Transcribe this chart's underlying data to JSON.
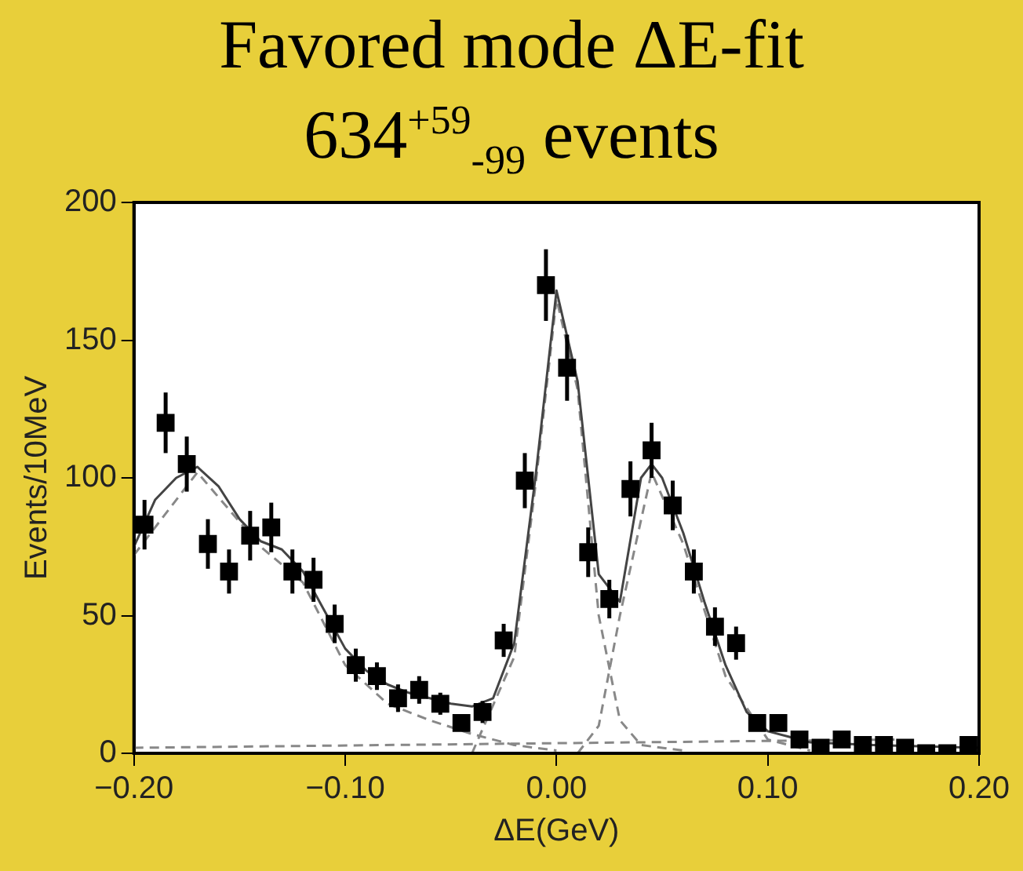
{
  "chart_data": {
    "type": "scatter",
    "title": "Favored mode ΔE-fit",
    "subtitle": "634$^{+59}$$_{-99}$ events",
    "xlabel": "ΔE(GeV)",
    "ylabel": "Events/10MeV",
    "xlim": [
      -0.2,
      0.2
    ],
    "xticks": [
      {
        "value": -0.2,
        "label": "−0.20"
      },
      {
        "value": -0.1,
        "label": "−0.10"
      },
      {
        "value": 0,
        "label": "0.00"
      },
      {
        "value": 0.1,
        "label": "0.10"
      },
      {
        "value": 0.2,
        "label": "0.20"
      }
    ],
    "ylim": [
      0,
      200
    ],
    "yticks": [
      0,
      50,
      100,
      150,
      200
    ],
    "grid": false,
    "legend": false,
    "marker": "square",
    "series": [
      {
        "type": "scatter",
        "color": "#000000",
        "x": [
          -0.195,
          -0.185,
          -0.175,
          -0.165,
          -0.155,
          -0.145,
          -0.135,
          -0.125,
          -0.115,
          -0.105,
          -0.095,
          -0.085,
          -0.075,
          -0.065,
          -0.055,
          -0.045,
          -0.035,
          -0.025,
          -0.015,
          -0.005,
          0.005,
          0.015,
          0.025,
          0.035,
          0.045,
          0.055,
          0.065,
          0.075,
          0.085,
          0.095,
          0.105,
          0.115,
          0.125,
          0.135,
          0.145,
          0.155,
          0.165,
          0.175,
          0.185,
          0.195
        ],
        "values": [
          83,
          120,
          105,
          76,
          66,
          79,
          82,
          66,
          63,
          47,
          32,
          28,
          20,
          23,
          18,
          11,
          15,
          41,
          99,
          170,
          140,
          73,
          56,
          96,
          110,
          90,
          66,
          46,
          40,
          11,
          11,
          5,
          2,
          5,
          3,
          3,
          2,
          0,
          0,
          3
        ],
        "errors": [
          9,
          11,
          10,
          9,
          8,
          9,
          9,
          8,
          8,
          7,
          6,
          5,
          5,
          5,
          4,
          3,
          4,
          6,
          10,
          13,
          12,
          9,
          7,
          10,
          10,
          9,
          8,
          7,
          6,
          3,
          3,
          2,
          1,
          2,
          2,
          2,
          1,
          null,
          null,
          2
        ]
      },
      {
        "type": "line",
        "color": "#444444",
        "line_style": "solid",
        "marker": "none",
        "x": [
          -0.2,
          -0.19,
          -0.18,
          -0.17,
          -0.16,
          -0.15,
          -0.14,
          -0.13,
          -0.12,
          -0.11,
          -0.1,
          -0.09,
          -0.08,
          -0.07,
          -0.06,
          -0.05,
          -0.04,
          -0.03,
          -0.02,
          -0.01,
          0,
          0.01,
          0.02,
          0.03,
          0.04,
          0.045,
          0.05,
          0.06,
          0.07,
          0.08,
          0.09,
          0.1,
          0.12,
          0.15,
          0.2
        ],
        "values": [
          75,
          92,
          100,
          104,
          97,
          85,
          77,
          74,
          66,
          52,
          38,
          30,
          25,
          22,
          20,
          18,
          17,
          20,
          40,
          100,
          168,
          135,
          65,
          55,
          100,
          105,
          100,
          80,
          55,
          32,
          15,
          8,
          4,
          3,
          2
        ]
      },
      {
        "type": "line",
        "color": "#888888",
        "line_style": "dashed",
        "marker": "none",
        "x": [
          -0.2,
          -0.17,
          -0.14,
          -0.12,
          -0.1,
          -0.08,
          -0.06,
          -0.04,
          -0.02,
          0
        ],
        "values": [
          72,
          102,
          75,
          62,
          32,
          18,
          12,
          7,
          3,
          1
        ]
      },
      {
        "type": "line",
        "color": "#888888",
        "line_style": "dashed",
        "marker": "none",
        "x": [
          -0.04,
          -0.02,
          -0.01,
          0,
          0.01,
          0.02,
          0.03,
          0.04,
          0.06
        ],
        "values": [
          0,
          35,
          97,
          165,
          132,
          50,
          12,
          3,
          1
        ]
      },
      {
        "type": "line",
        "color": "#888888",
        "line_style": "dashed",
        "marker": "none",
        "x": [
          0.01,
          0.02,
          0.03,
          0.045,
          0.06,
          0.08,
          0.1,
          0.12
        ],
        "values": [
          0,
          10,
          50,
          102,
          76,
          28,
          5,
          1
        ]
      },
      {
        "type": "line",
        "color": "#888888",
        "line_style": "dashed",
        "marker": "none",
        "x": [
          -0.2,
          0.16
        ],
        "values": [
          2,
          5
        ]
      }
    ]
  }
}
